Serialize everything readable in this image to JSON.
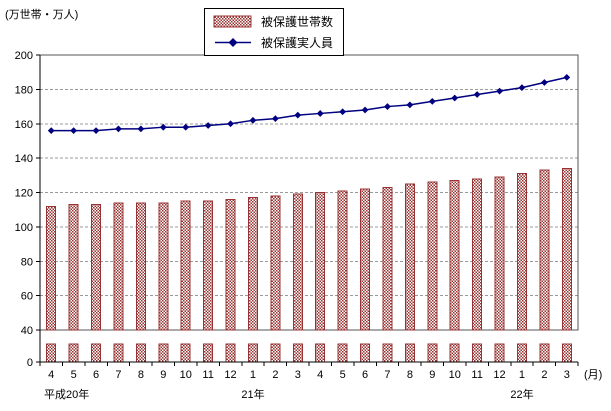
{
  "unit_label": "(万世帯・万人)",
  "month_unit_label": "(月)",
  "legend": {
    "bars_label": "被保護世帯数",
    "line_label": "被保護実人員"
  },
  "colors": {
    "bar": "#993333",
    "line": "#000080",
    "grid": "#999999",
    "axis": "#000000",
    "border": "#555555"
  },
  "chart_data": {
    "type": "bar+line",
    "title": "",
    "ylabel": "(万世帯・万人)",
    "xlabel": "(月)",
    "categories": [
      "4",
      "5",
      "6",
      "7",
      "8",
      "9",
      "10",
      "11",
      "12",
      "1",
      "2",
      "3",
      "4",
      "5",
      "6",
      "7",
      "8",
      "9",
      "10",
      "11",
      "12",
      "1",
      "2",
      "3"
    ],
    "era_labels": [
      {
        "label": "平成20年",
        "index": 0
      },
      {
        "label": "21年",
        "index": 9
      },
      {
        "label": "22年",
        "index": 21
      }
    ],
    "series": [
      {
        "name": "被保護世帯数",
        "type": "bar",
        "values": [
          112,
          113,
          113,
          114,
          114,
          114,
          115,
          115,
          116,
          117,
          118,
          119,
          120,
          121,
          122,
          123,
          125,
          126,
          127,
          128,
          129,
          131,
          133,
          134
        ]
      },
      {
        "name": "被保護実人員",
        "type": "line",
        "values": [
          156,
          156,
          156,
          157,
          157,
          158,
          158,
          159,
          160,
          162,
          163,
          165,
          166,
          167,
          168,
          170,
          171,
          173,
          175,
          177,
          179,
          181,
          184,
          187
        ]
      }
    ],
    "y_ticks": [
      0,
      40,
      60,
      80,
      100,
      120,
      140,
      160,
      180,
      200
    ],
    "ylim_main": [
      40,
      200
    ],
    "axis_break": true,
    "grid": "horizontal-dashed",
    "legend_position": "top-center"
  }
}
